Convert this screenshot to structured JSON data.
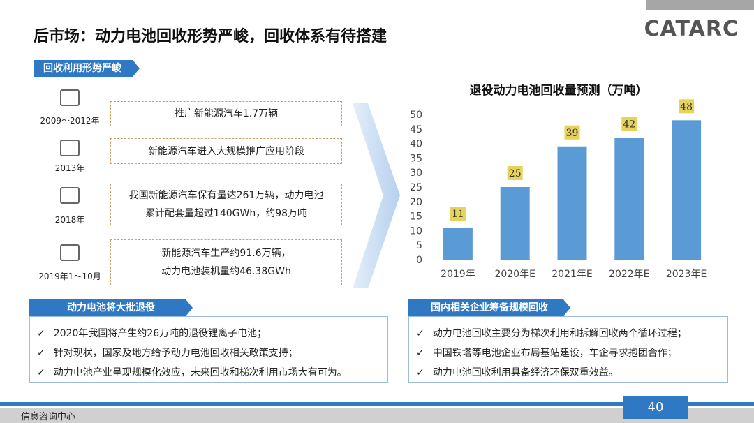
{
  "header": {
    "title": "后市场：动力电池回收形势严峻，回收体系有待搭建",
    "logo": "CATARC"
  },
  "section": {
    "label": "回收利用形势严峻"
  },
  "timeline": [
    {
      "date": "2009～2012年",
      "lines": [
        "推广新能源汽车1.7万辆"
      ]
    },
    {
      "date": "2013年",
      "lines": [
        "新能源汽车进入大规模推广应用阶段"
      ]
    },
    {
      "date": "2018年",
      "lines": [
        "我国新能源汽车保有量达261万辆，动力电池",
        "累计配套量超过140GWh，约98万吨"
      ]
    },
    {
      "date": "2019年1～10月",
      "lines": [
        "新能源汽车生产约91.6万辆，",
        "动力电池装机量约46.38GWh"
      ]
    }
  ],
  "chart_data": {
    "type": "bar",
    "title": "退役动力电池回收量预测（万吨）",
    "categories": [
      "2019年",
      "2020年E",
      "2021年E",
      "2022年E",
      "2023年E"
    ],
    "values": [
      11,
      25,
      39,
      42,
      48
    ],
    "color": "#5b9bd5",
    "ylim": [
      0,
      50
    ],
    "yticks": [
      0,
      5,
      10,
      15,
      20,
      25,
      30,
      35,
      40,
      45,
      50
    ]
  },
  "panels": [
    {
      "title": "动力电池将大批退役",
      "items": [
        "2020年我国将产生约26万吨的退役锂离子电池；",
        "针对现状，国家及地方给予动力电池回收相关政策支持；",
        "动力电池产业呈现规模化效应，未来回收和梯次利用市场大有可为。"
      ]
    },
    {
      "title": "国内相关企业筹备规模回收",
      "items": [
        "动力电池回收主要分为梯次利用和拆解回收两个循环过程；",
        "中国铁塔等电池企业布局基站建设，车企寻求抱团合作；",
        "动力电池回收利用具备经济环保双重效益。"
      ]
    }
  ],
  "footer": {
    "org": "信息咨询中心",
    "page": 40
  }
}
